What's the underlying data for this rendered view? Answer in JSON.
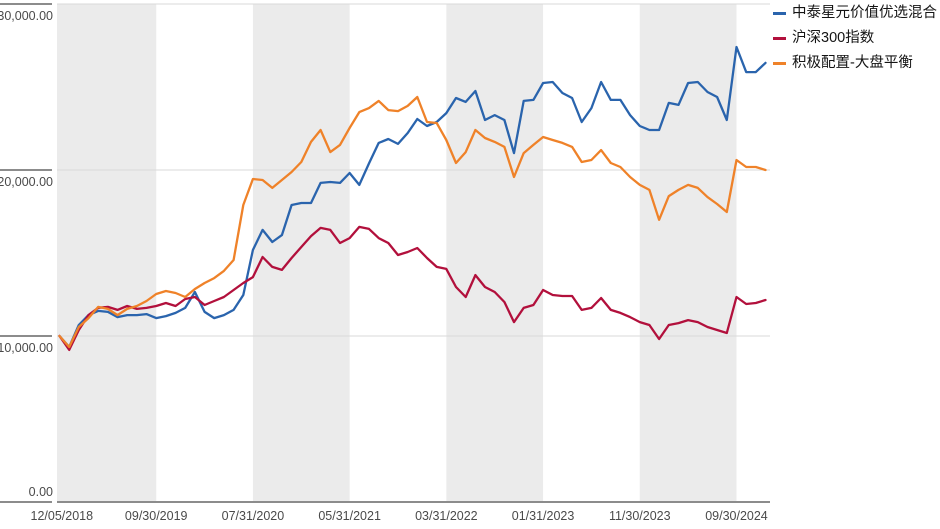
{
  "chart_data": {
    "type": "line",
    "title": "",
    "xlabel": "",
    "ylabel": "",
    "ylim": [
      0,
      30000
    ],
    "grid": "horizontal",
    "background_bands": true,
    "band_color": "#ebebeb",
    "gridline_color": "#d9d9d9",
    "axis_color": "#8c8c8c",
    "tick_label_color": "#4a4a4a",
    "legend_position": "top-right",
    "x_tick_every_points": 10,
    "x_tick_labels": [
      "12/05/2018",
      "09/30/2019",
      "07/31/2020",
      "05/31/2021",
      "03/31/2022",
      "01/31/2023",
      "11/30/2023",
      "09/30/2024"
    ],
    "y_ticks": [
      {
        "value": 30000,
        "label": "30,000.00"
      },
      {
        "value": 20000,
        "label": "20,000.00"
      },
      {
        "value": 10000,
        "label": "10,000.00"
      },
      {
        "value": 0,
        "label": "0.00"
      }
    ],
    "series": [
      {
        "name": "中泰星元价值优选混合",
        "id": "fund",
        "color": "#2a64ad",
        "values": [
          10000,
          9340,
          10660,
          11260,
          11510,
          11450,
          11140,
          11260,
          11260,
          11320,
          11080,
          11200,
          11390,
          11690,
          12650,
          11450,
          11080,
          11260,
          11570,
          12470,
          15180,
          16390,
          15660,
          16080,
          17890,
          18010,
          18010,
          19220,
          19280,
          19220,
          19820,
          19100,
          20400,
          21630,
          21870,
          21570,
          22230,
          23070,
          22650,
          22890,
          23430,
          24340,
          24100,
          24760,
          23010,
          23310,
          23010,
          21020,
          24160,
          24220,
          25240,
          25300,
          24640,
          24340,
          22890,
          23730,
          25300,
          24220,
          24220,
          23310,
          22650,
          22410,
          22410,
          24040,
          23920,
          25240,
          25300,
          24700,
          24400,
          23010,
          27410,
          25900,
          25900,
          26450
        ]
      },
      {
        "name": "沪深300指数",
        "id": "index",
        "color": "#b2103c",
        "values": [
          10000,
          9160,
          10360,
          11260,
          11700,
          11750,
          11570,
          11810,
          11630,
          11690,
          11810,
          11990,
          11810,
          12230,
          12350,
          11870,
          12110,
          12350,
          12770,
          13190,
          13550,
          14760,
          14160,
          13980,
          14700,
          15360,
          16020,
          16510,
          16390,
          15600,
          15900,
          16570,
          16450,
          15900,
          15600,
          14880,
          15060,
          15300,
          14700,
          14160,
          14040,
          12950,
          12350,
          13670,
          12950,
          12650,
          12050,
          10840,
          11690,
          11870,
          12770,
          12470,
          12410,
          12410,
          11570,
          11690,
          12290,
          11570,
          11390,
          11140,
          10840,
          10660,
          9820,
          10660,
          10780,
          10960,
          10840,
          10540,
          10360,
          10180,
          12350,
          11930,
          11990,
          12170
        ]
      },
      {
        "name": "积极配置-大盘平衡",
        "id": "category",
        "color": "#ef8229",
        "values": [
          10000,
          9340,
          10540,
          11080,
          11750,
          11630,
          11260,
          11630,
          11810,
          12110,
          12530,
          12710,
          12590,
          12350,
          12830,
          13190,
          13490,
          13920,
          14580,
          17890,
          19460,
          19400,
          18920,
          19400,
          19880,
          20480,
          21690,
          22410,
          21080,
          21510,
          22530,
          23490,
          23730,
          24160,
          23610,
          23550,
          23860,
          24400,
          22890,
          22830,
          21810,
          20420,
          21080,
          22410,
          21930,
          21690,
          21390,
          19580,
          21020,
          21510,
          21990,
          21810,
          21630,
          21390,
          20480,
          20600,
          21200,
          20420,
          20180,
          19580,
          19100,
          18800,
          17000,
          18430,
          18800,
          19100,
          18920,
          18370,
          17950,
          17470,
          20600,
          20180,
          20180,
          20000
        ]
      }
    ]
  }
}
